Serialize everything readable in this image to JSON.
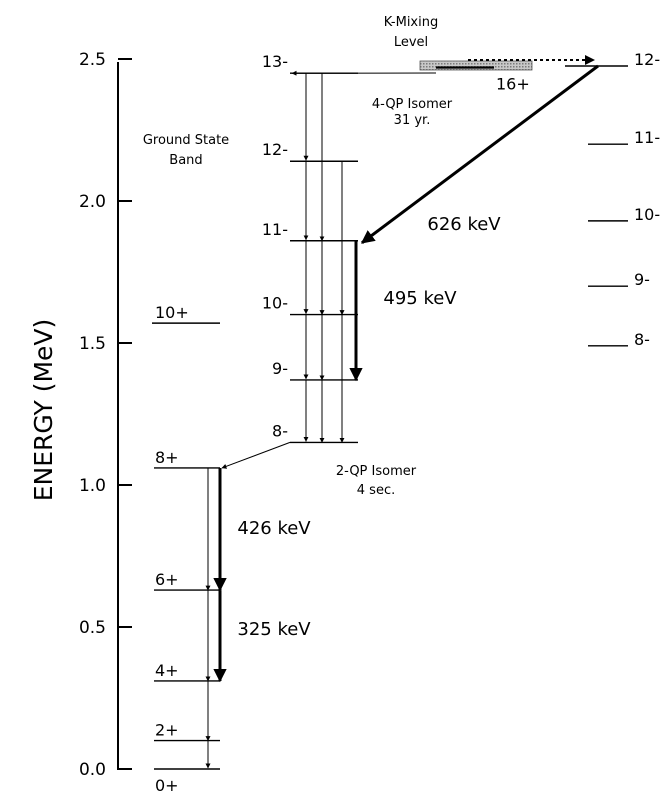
{
  "axis": {
    "ylabel": "ENERGY (MeV)",
    "ticks": [
      {
        "value": 0.0,
        "label": "0.0"
      },
      {
        "value": 0.5,
        "label": "0.5"
      },
      {
        "value": 1.0,
        "label": "1.0"
      },
      {
        "value": 1.5,
        "label": "1.5"
      },
      {
        "value": 2.0,
        "label": "2.0"
      },
      {
        "value": 2.5,
        "label": "2.5"
      }
    ]
  },
  "annotations": {
    "ground_state_band": [
      "Ground State",
      "Band"
    ],
    "k_mixing": [
      "K-Mixing",
      "Level"
    ],
    "isomer_4qp": [
      "4-QP Isomer",
      "31 yr."
    ],
    "isomer_2qp": [
      "2-QP Isomer",
      "4 sec."
    ]
  },
  "bands": {
    "ground": [
      {
        "spin": "0+",
        "energy": 0.0
      },
      {
        "spin": "2+",
        "energy": 0.1
      },
      {
        "spin": "4+",
        "energy": 0.31
      },
      {
        "spin": "6+",
        "energy": 0.63
      },
      {
        "spin": "8+",
        "energy": 1.06
      },
      {
        "spin": "10+",
        "energy": 1.57
      }
    ],
    "isomer_2qp": [
      {
        "spin": "8-",
        "energy": 1.15
      },
      {
        "spin": "9-",
        "energy": 1.37
      },
      {
        "spin": "10-",
        "energy": 1.6
      },
      {
        "spin": "11-",
        "energy": 1.86
      },
      {
        "spin": "12-",
        "energy": 2.14
      },
      {
        "spin": "13-",
        "energy": 2.45
      }
    ],
    "isomer_4qp": [
      {
        "spin": "16+",
        "energy": 2.47
      }
    ],
    "right": [
      {
        "spin": "8-",
        "energy": 1.49
      },
      {
        "spin": "9-",
        "energy": 1.7
      },
      {
        "spin": "10-",
        "energy": 1.93
      },
      {
        "spin": "11-",
        "energy": 2.2
      },
      {
        "spin": "12-",
        "energy": 2.49
      }
    ]
  },
  "gamma_labels": {
    "t626": "626 keV",
    "t495": "495 keV",
    "t426": "426 keV",
    "t325": "325 keV"
  }
}
